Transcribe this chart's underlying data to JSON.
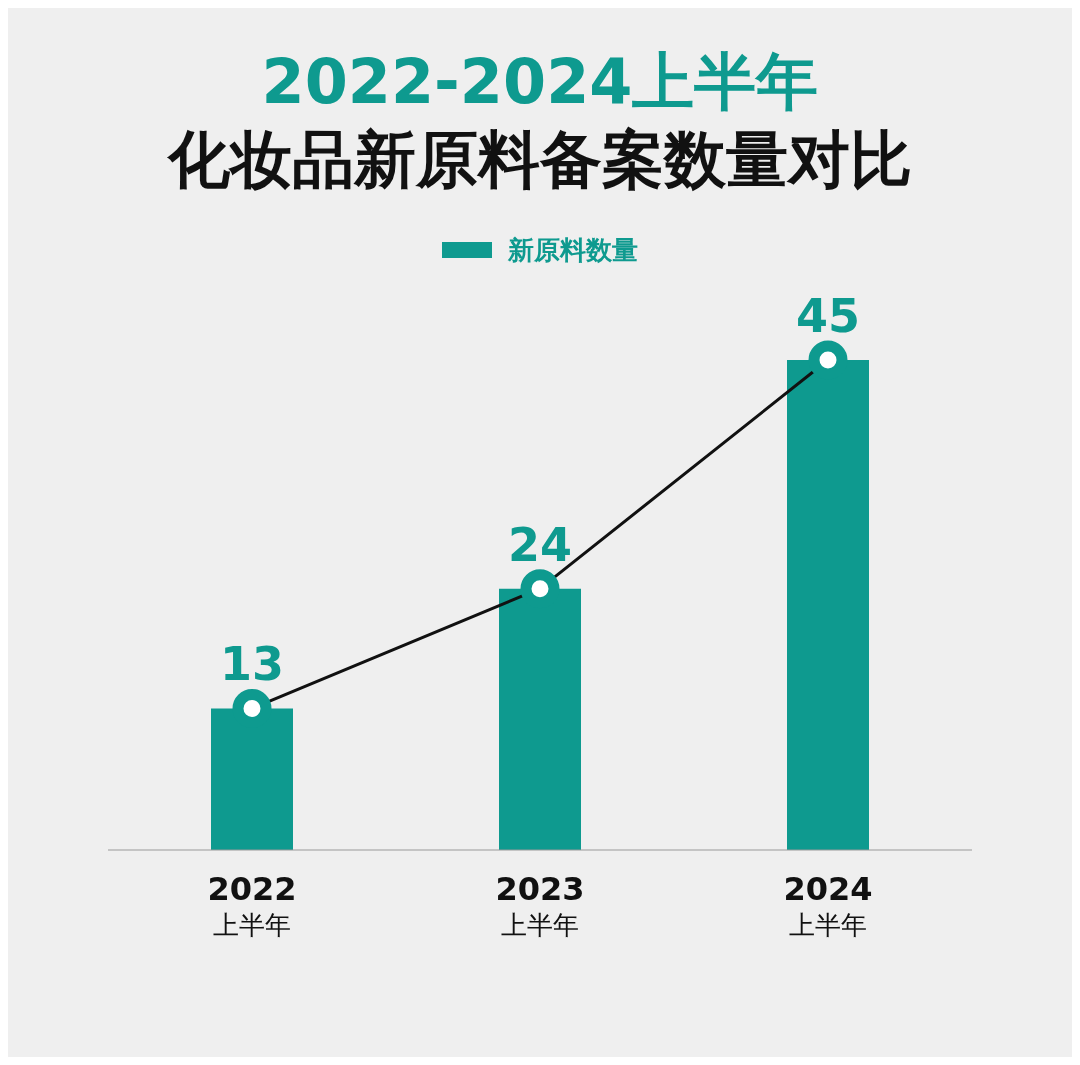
{
  "chart_data": {
    "type": "bar",
    "title": "2022-2024上半年",
    "subtitle": "化妆品新原料备案数量对比",
    "categories": [
      "2022\n上半年",
      "2023\n上半年",
      "2024\n上半年"
    ],
    "series": [
      {
        "name": "新原料数量",
        "color": "#0e9a8f",
        "values": [
          13,
          24,
          45
        ],
        "value_labels": [
          "13",
          "24",
          "45"
        ]
      },
      {
        "type": "line",
        "color": "#111111",
        "values": [
          13,
          24,
          45
        ],
        "marker": "circle"
      }
    ],
    "legend": "top",
    "grid": false,
    "tick_labels": "x"
  }
}
